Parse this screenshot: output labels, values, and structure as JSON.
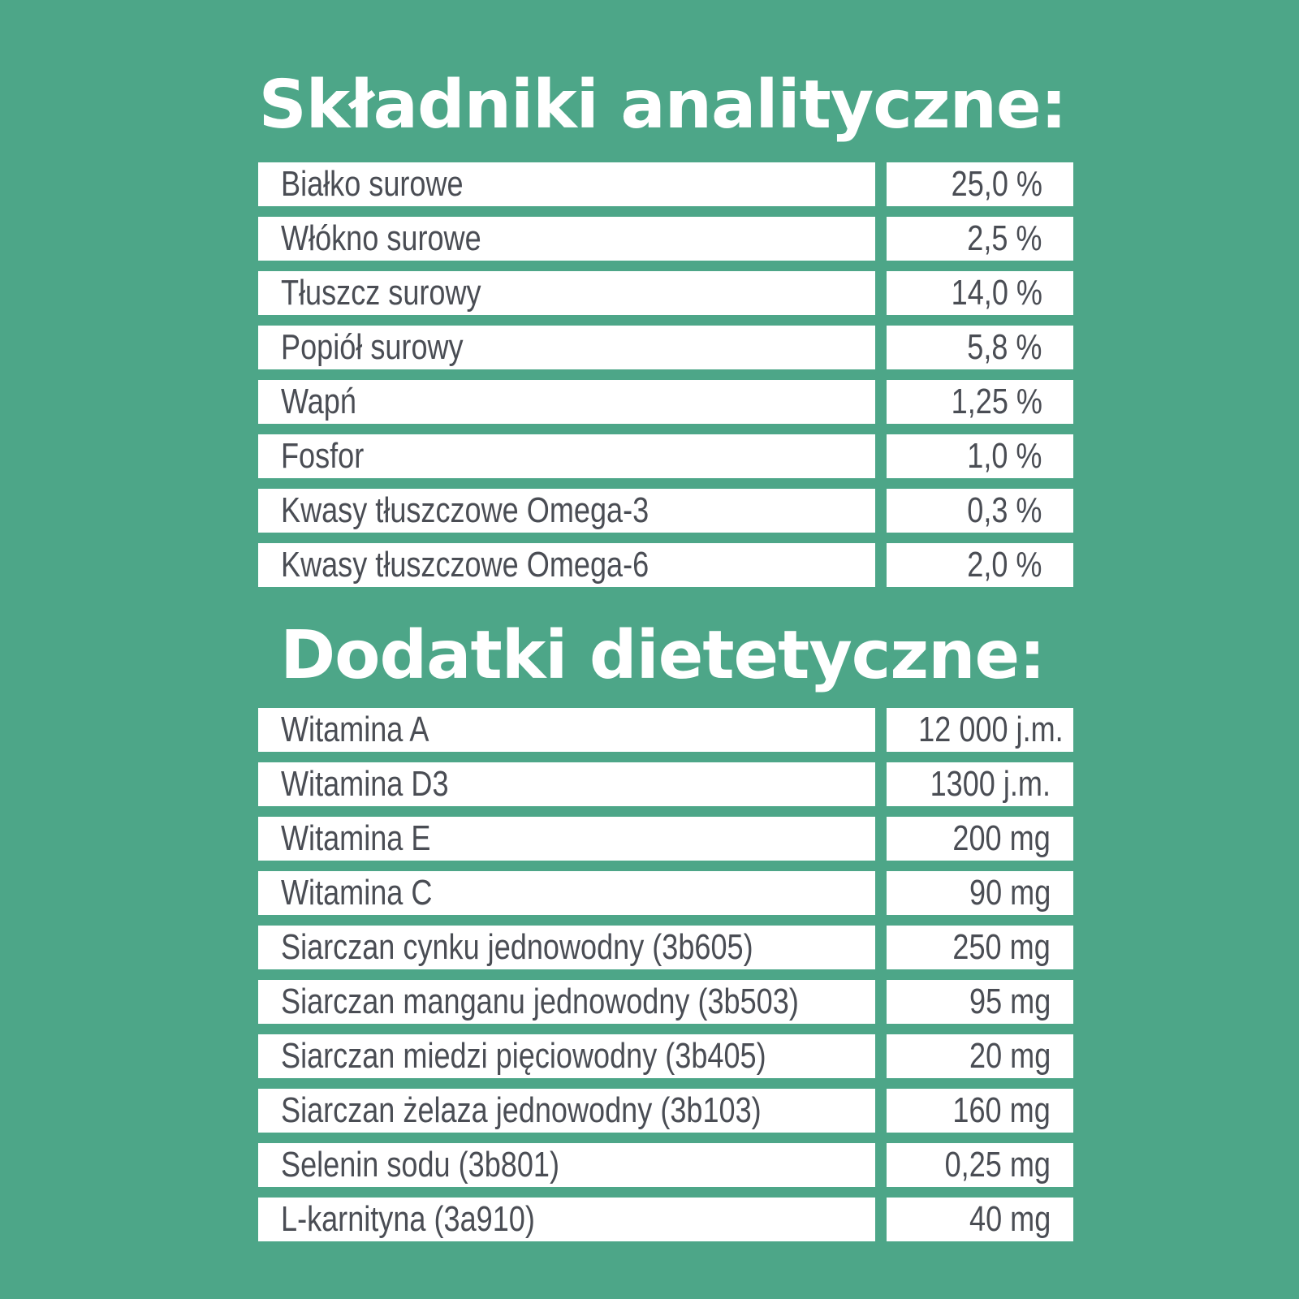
{
  "colors": {
    "background": "#4da688",
    "cell_background": "#ffffff",
    "title_text": "#ffffff",
    "cell_text": "#4a4d54"
  },
  "analytical": {
    "title": "Składniki analityczne:",
    "rows": [
      {
        "name": "Białko surowe",
        "value": "25,0 %"
      },
      {
        "name": "Włókno surowe",
        "value": "2,5 %"
      },
      {
        "name": "Tłuszcz surowy",
        "value": "14,0 %"
      },
      {
        "name": "Popiół surowy",
        "value": "5,8 %"
      },
      {
        "name": "Wapń",
        "value": "1,25 %"
      },
      {
        "name": "Fosfor",
        "value": "1,0 %"
      },
      {
        "name": "Kwasy tłuszczowe Omega-3",
        "value": "0,3 %"
      },
      {
        "name": "Kwasy tłuszczowe Omega-6",
        "value": "2,0 %"
      }
    ]
  },
  "additives": {
    "title": "Dodatki dietetyczne:",
    "rows": [
      {
        "name": "Witamina A",
        "value": "12 000 j.m."
      },
      {
        "name": "Witamina D3",
        "value": "1300 j.m."
      },
      {
        "name": "Witamina E",
        "value": "200 mg"
      },
      {
        "name": "Witamina C",
        "value": "90 mg"
      },
      {
        "name": "Siarczan cynku jednowodny (3b605)",
        "value": "250 mg"
      },
      {
        "name": "Siarczan manganu jednowodny (3b503)",
        "value": "95 mg"
      },
      {
        "name": "Siarczan miedzi pięciowodny (3b405)",
        "value": "20 mg"
      },
      {
        "name": "Siarczan żelaza jednowodny (3b103)",
        "value": "160 mg"
      },
      {
        "name": "Selenin sodu (3b801)",
        "value": "0,25 mg"
      },
      {
        "name": "L-karnityna (3a910)",
        "value": "40 mg"
      }
    ]
  }
}
